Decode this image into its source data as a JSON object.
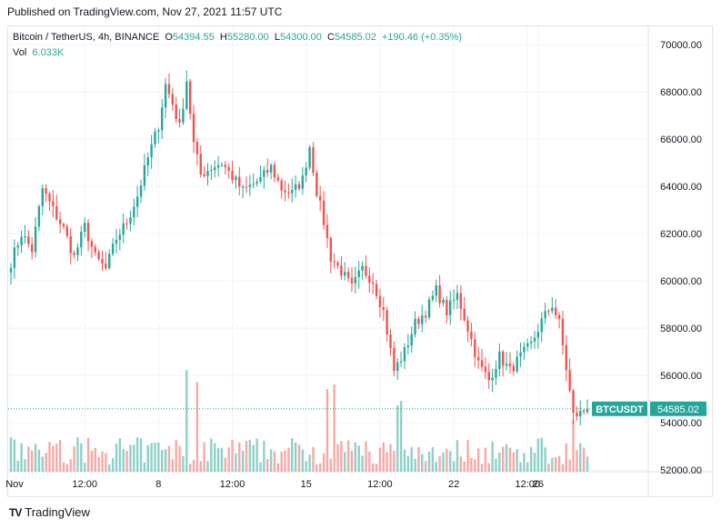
{
  "published": "Published on TradingView.com, Nov 27, 2021 11:57 UTC",
  "legend": {
    "symbol": "Bitcoin / TetherUS, 4h, BINANCE",
    "o_label": "O",
    "o_value": "54394.55",
    "h_label": "H",
    "h_value": "55280.00",
    "l_label": "L",
    "l_value": "54300.00",
    "c_label": "C",
    "c_value": "54585.02",
    "change": "+190.46 (+0.35%)"
  },
  "volume": {
    "label": "Vol",
    "value": "6.033K"
  },
  "footer": {
    "brand": "TradingView",
    "logo": "TV"
  },
  "colors": {
    "up": "#26a69a",
    "down": "#ef5350",
    "up_vol": "#8fcfc8",
    "down_vol": "#f5a9a7",
    "grid": "#f0f3fa",
    "badge": "#26a69a"
  },
  "chart_data": {
    "type": "candlestick",
    "y_ticks": [
      "70000.00",
      "68000.00",
      "66000.00",
      "64000.00",
      "62000.00",
      "60000.00",
      "58000.00",
      "56000.00",
      "54000.00",
      "52000.00"
    ],
    "ylim": [
      52000,
      70500
    ],
    "x_ticks": [
      {
        "label": "Nov",
        "i": 0
      },
      {
        "label": "12:00",
        "i": 21
      },
      {
        "label": "8",
        "i": 42
      },
      {
        "label": "12:00",
        "i": 63
      },
      {
        "label": "15",
        "i": 84
      },
      {
        "label": "12:00",
        "i": 105
      },
      {
        "label": "22",
        "i": 126
      },
      {
        "label": "12:00",
        "i": 147
      },
      {
        "label": "26",
        "i": 150
      }
    ],
    "last_price": {
      "symbol": "BTCUSDT",
      "value": "54585.02",
      "price": 54585.02
    },
    "anchors": [
      [
        0,
        60800
      ],
      [
        3,
        62000
      ],
      [
        6,
        61300
      ],
      [
        9,
        63900
      ],
      [
        12,
        63000
      ],
      [
        15,
        62200
      ],
      [
        18,
        61000
      ],
      [
        21,
        62300
      ],
      [
        24,
        61000
      ],
      [
        27,
        60500
      ],
      [
        30,
        61800
      ],
      [
        33,
        62500
      ],
      [
        36,
        63600
      ],
      [
        39,
        65200
      ],
      [
        42,
        66600
      ],
      [
        44,
        68300
      ],
      [
        46,
        67500
      ],
      [
        48,
        66500
      ],
      [
        50,
        68500
      ],
      [
        52,
        65800
      ],
      [
        54,
        64500
      ],
      [
        57,
        64800
      ],
      [
        60,
        65000
      ],
      [
        63,
        64400
      ],
      [
        66,
        63800
      ],
      [
        68,
        64000
      ],
      [
        71,
        64300
      ],
      [
        74,
        64800
      ],
      [
        77,
        63900
      ],
      [
        80,
        63700
      ],
      [
        83,
        64300
      ],
      [
        85,
        65700
      ],
      [
        87,
        63800
      ],
      [
        89,
        62500
      ],
      [
        91,
        61000
      ],
      [
        94,
        60400
      ],
      [
        97,
        59700
      ],
      [
        100,
        60500
      ],
      [
        103,
        60000
      ],
      [
        106,
        58700
      ],
      [
        109,
        56200
      ],
      [
        112,
        57000
      ],
      [
        115,
        58200
      ],
      [
        118,
        58700
      ],
      [
        121,
        59600
      ],
      [
        124,
        58700
      ],
      [
        127,
        59400
      ],
      [
        130,
        58000
      ],
      [
        133,
        56500
      ],
      [
        136,
        55800
      ],
      [
        139,
        56800
      ],
      [
        142,
        56200
      ],
      [
        145,
        56800
      ],
      [
        148,
        57300
      ],
      [
        151,
        58300
      ],
      [
        154,
        59000
      ],
      [
        156,
        58200
      ],
      [
        158,
        56300
      ],
      [
        160,
        54300
      ],
      [
        162,
        54400
      ],
      [
        164,
        54585
      ]
    ],
    "volume_spikes": [
      [
        50,
        4.3
      ],
      [
        53,
        3.8
      ],
      [
        90,
        3.5
      ],
      [
        92,
        3.7
      ],
      [
        110,
        2.8
      ],
      [
        111,
        3.0
      ],
      [
        160,
        2.2
      ]
    ]
  }
}
